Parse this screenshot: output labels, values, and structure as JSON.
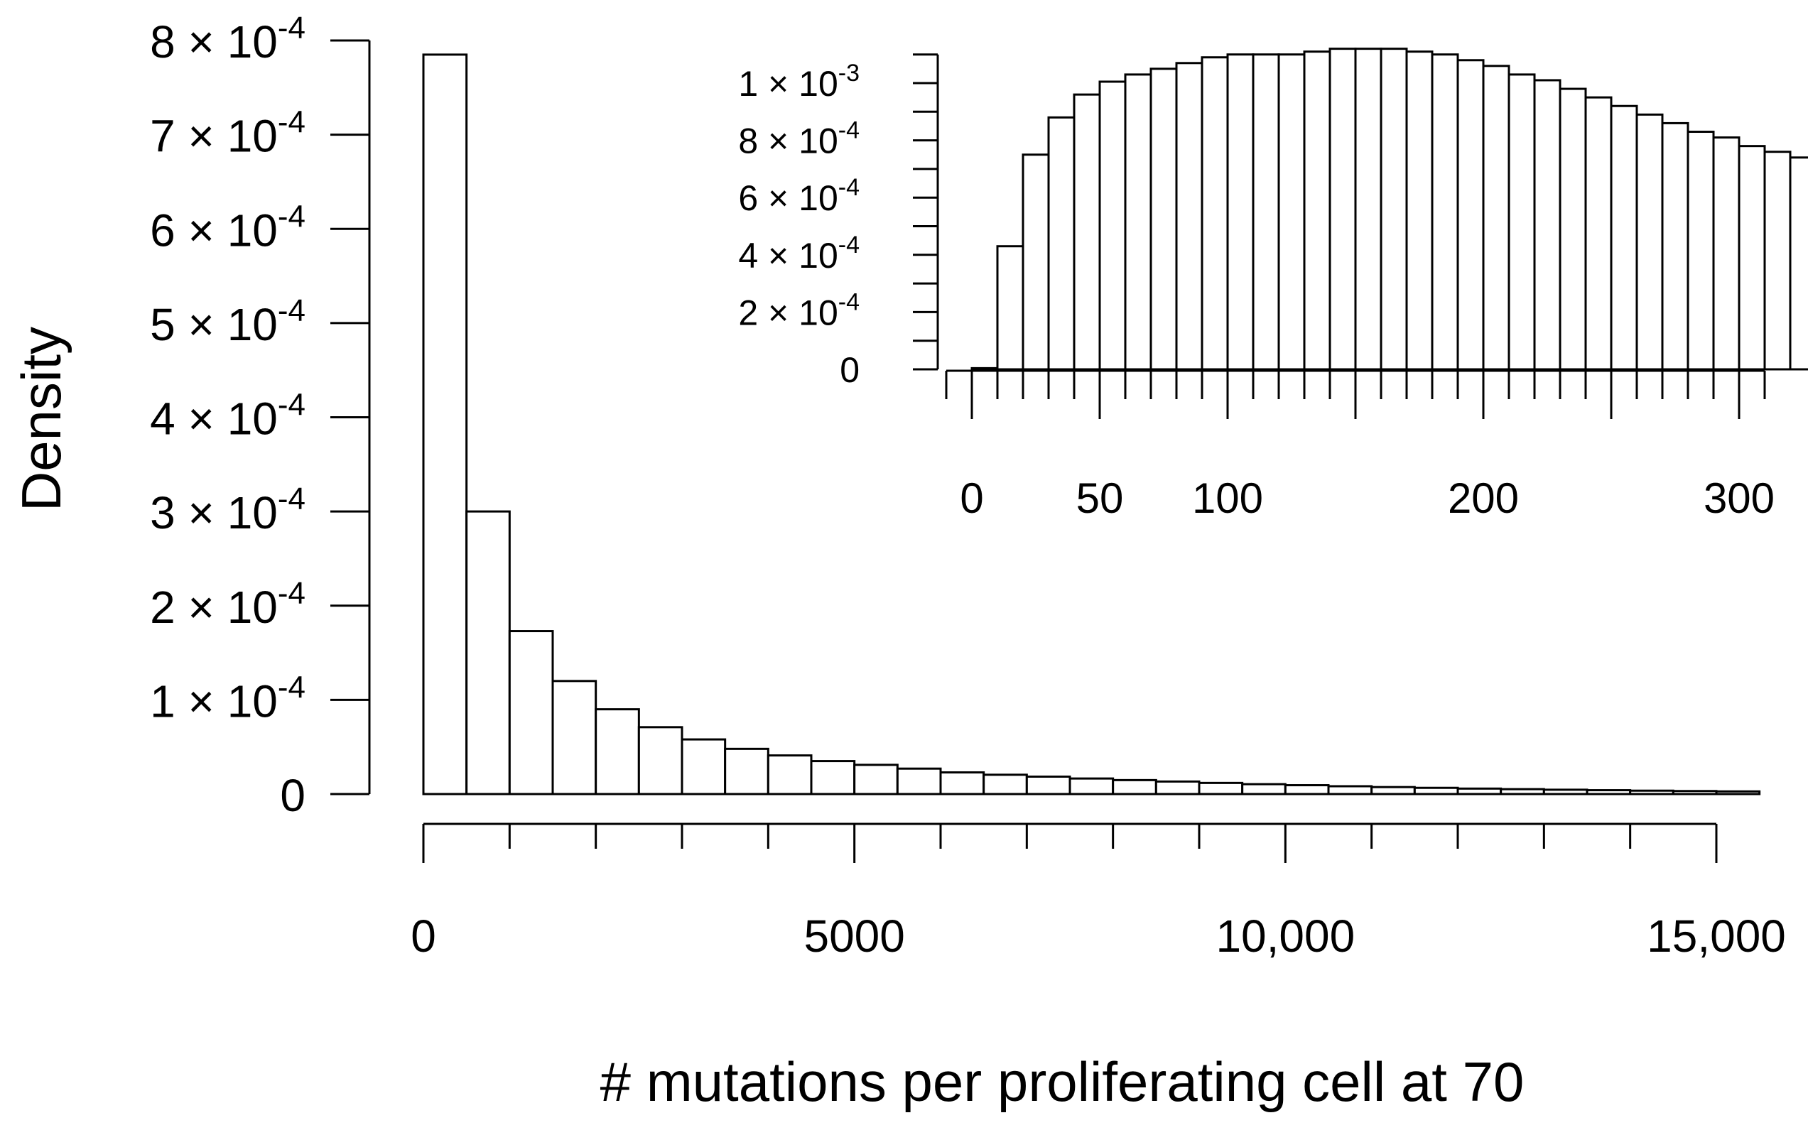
{
  "chart_data": [
    {
      "id": "main",
      "type": "bar",
      "subtype": "histogram",
      "title": "",
      "xlabel": "# mutations per proliferating cell at 70",
      "ylabel": "Density",
      "bin_width": 500,
      "x_start": 0,
      "xlim": [
        0,
        15500
      ],
      "ylim": [
        0,
        0.0008
      ],
      "grid": false,
      "values": [
        0.000785,
        0.0003,
        0.000173,
        0.00012,
        9e-05,
        7.1e-05,
        5.8e-05,
        4.8e-05,
        4.1e-05,
        3.5e-05,
        3.1e-05,
        2.7e-05,
        2.3e-05,
        2.05e-05,
        1.85e-05,
        1.65e-05,
        1.48e-05,
        1.33e-05,
        1.18e-05,
        1.05e-05,
        9.4e-06,
        8.3e-06,
        7.4e-06,
        6.6e-06,
        5.8e-06,
        5.2e-06,
        4.6e-06,
        4.1e-06,
        3.6e-06,
        3.2e-06,
        2.8e-06
      ],
      "y_ticks": [
        {
          "value": 0,
          "mantissa": "0",
          "exponent": ""
        },
        {
          "value": 0.0001,
          "mantissa": "1 × 10",
          "exponent": "-4"
        },
        {
          "value": 0.0002,
          "mantissa": "2 × 10",
          "exponent": "-4"
        },
        {
          "value": 0.0003,
          "mantissa": "3 × 10",
          "exponent": "-4"
        },
        {
          "value": 0.0004,
          "mantissa": "4 × 10",
          "exponent": "-4"
        },
        {
          "value": 0.0005,
          "mantissa": "5 × 10",
          "exponent": "-4"
        },
        {
          "value": 0.0006,
          "mantissa": "6 × 10",
          "exponent": "-4"
        },
        {
          "value": 0.0007,
          "mantissa": "7 × 10",
          "exponent": "-4"
        },
        {
          "value": 0.0008,
          "mantissa": "8 × 10",
          "exponent": "-4"
        }
      ],
      "x_minor_ticks": [
        0,
        1000,
        2000,
        3000,
        4000,
        5000,
        6000,
        7000,
        8000,
        9000,
        10000,
        11000,
        12000,
        13000,
        14000,
        15000
      ],
      "x_labels": [
        {
          "value": 0,
          "label": "0"
        },
        {
          "value": 5000,
          "label": "5000"
        },
        {
          "value": 10000,
          "label": "10,000"
        },
        {
          "value": 15000,
          "label": "15,000"
        }
      ]
    },
    {
      "id": "inset",
      "type": "bar",
      "subtype": "histogram",
      "title": "",
      "xlabel": "",
      "ylabel": "",
      "bin_width": 10,
      "x_start": 0,
      "xlim": [
        -10,
        310
      ],
      "ylim": [
        0,
        0.0011
      ],
      "grid": false,
      "values": [
        4e-06,
        0.00043,
        0.00075,
        0.00088,
        0.00096,
        0.001005,
        0.00103,
        0.00105,
        0.00107,
        0.00109,
        0.0011,
        0.0011,
        0.0011,
        0.00111,
        0.00112,
        0.00112,
        0.00112,
        0.00111,
        0.0011,
        0.00108,
        0.00106,
        0.00103,
        0.00101,
        0.00098,
        0.00095,
        0.00092,
        0.00089,
        0.00086,
        0.00083,
        0.00081,
        0.00078,
        0.00076,
        0.00074
      ],
      "y_ticks": [
        {
          "value": 0,
          "mantissa": "0",
          "exponent": ""
        },
        {
          "value": 0.0002,
          "mantissa": "2 × 10",
          "exponent": "-4"
        },
        {
          "value": 0.0004,
          "mantissa": "4 × 10",
          "exponent": "-4"
        },
        {
          "value": 0.0006,
          "mantissa": "6 × 10",
          "exponent": "-4"
        },
        {
          "value": 0.0008,
          "mantissa": "8 × 10",
          "exponent": "-4"
        },
        {
          "value": 0.001,
          "mantissa": "1 × 10",
          "exponent": "-3"
        }
      ],
      "y_minor_ticks": [
        0,
        0.0001,
        0.0002,
        0.0003,
        0.0004,
        0.0005,
        0.0006,
        0.0007,
        0.0008,
        0.0009,
        0.001,
        0.0011
      ],
      "x_minor_ticks": [
        -10,
        0,
        10,
        20,
        30,
        40,
        50,
        60,
        70,
        80,
        90,
        100,
        110,
        120,
        130,
        140,
        150,
        160,
        170,
        180,
        190,
        200,
        210,
        220,
        230,
        240,
        250,
        260,
        270,
        280,
        290,
        300,
        310
      ],
      "x_major_ticks": [
        0,
        50,
        100,
        150,
        200,
        250,
        300
      ],
      "x_labels": [
        {
          "value": 0,
          "label": "0"
        },
        {
          "value": 50,
          "label": "50"
        },
        {
          "value": 100,
          "label": "100"
        },
        {
          "value": 200,
          "label": "200"
        },
        {
          "value": 300,
          "label": "300"
        }
      ]
    }
  ]
}
